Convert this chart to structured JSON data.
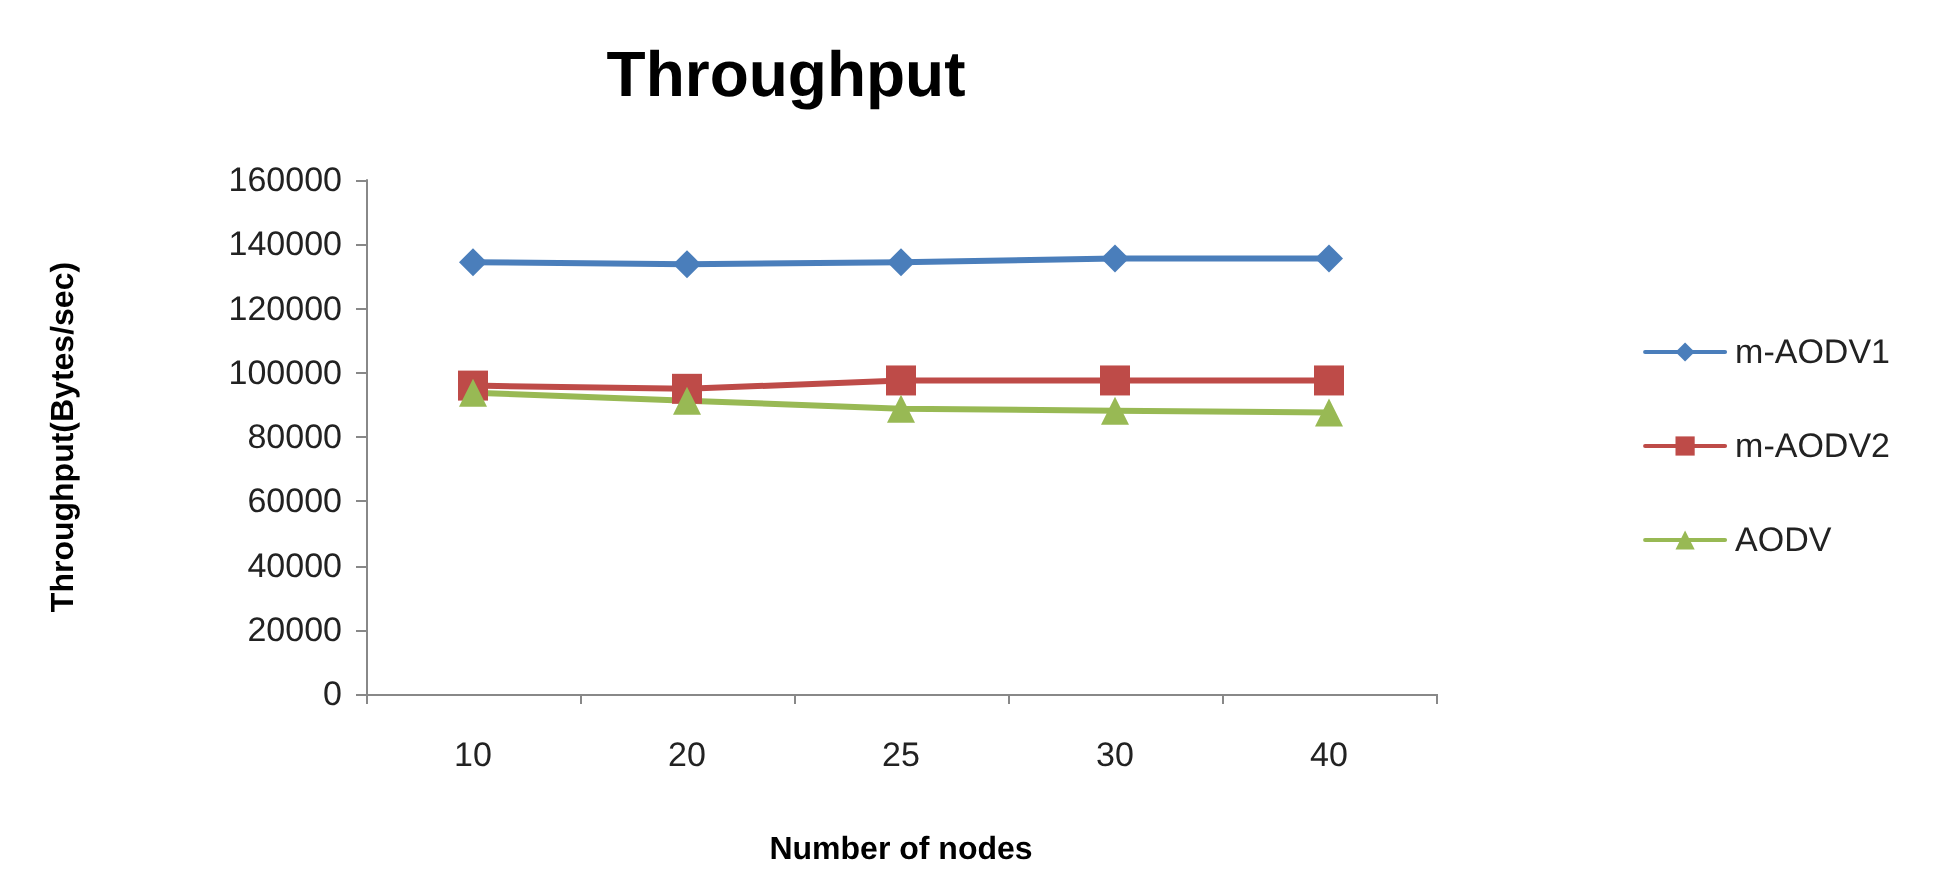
{
  "chart_data": {
    "type": "line",
    "title": "Throughput",
    "xlabel": "Number of nodes",
    "ylabel": "Throughput(Bytes/sec)",
    "categories": [
      "10",
      "20",
      "25",
      "30",
      "40"
    ],
    "series": [
      {
        "name": "m-AODV1",
        "color": "#4a7ebb",
        "marker": "diamond",
        "values": [
          134400,
          133800,
          134400,
          135600,
          135600
        ]
      },
      {
        "name": "m-AODV2",
        "color": "#be4b48",
        "marker": "square",
        "values": [
          96000,
          95000,
          97600,
          97600,
          97600
        ]
      },
      {
        "name": "AODV",
        "color": "#98b954",
        "marker": "triangle",
        "values": [
          93800,
          91300,
          88800,
          88200,
          87600
        ]
      }
    ],
    "ylim": [
      0,
      160000
    ],
    "yticks": [
      0,
      20000,
      40000,
      60000,
      80000,
      100000,
      120000,
      140000,
      160000
    ],
    "grid": false,
    "legend": "right"
  }
}
